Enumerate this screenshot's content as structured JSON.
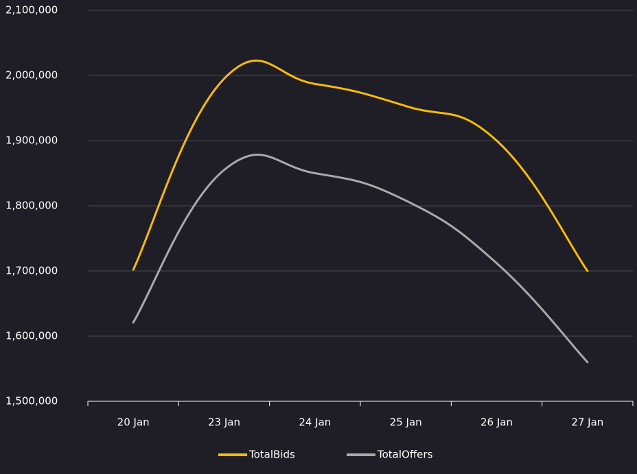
{
  "chart_data": {
    "type": "line",
    "categories": [
      "20 Jan",
      "23 Jan",
      "24 Jan",
      "25 Jan",
      "26 Jan",
      "27 Jan"
    ],
    "series": [
      {
        "name": "TotalBids",
        "color": "#f7bb0a",
        "values": [
          1702000,
          1995000,
          1987000,
          1953000,
          1900000,
          1700000
        ]
      },
      {
        "name": "TotalOffers",
        "color": "#a9a9ab",
        "values": [
          1621000,
          1855000,
          1850000,
          1808000,
          1712000,
          1560000
        ]
      }
    ],
    "ylim": [
      1500000,
      2100000
    ],
    "yticks": [
      {
        "value": 1500000,
        "label": "1,500,000"
      },
      {
        "value": 1600000,
        "label": "1,600,000"
      },
      {
        "value": 1700000,
        "label": "1,700,000"
      },
      {
        "value": 1800000,
        "label": "1,800,000"
      },
      {
        "value": 1900000,
        "label": "1,900,000"
      },
      {
        "value": 2000000,
        "label": "2,000,000"
      },
      {
        "value": 2100000,
        "label": "2,100,000"
      }
    ],
    "grid": true,
    "legend": "bottom"
  }
}
